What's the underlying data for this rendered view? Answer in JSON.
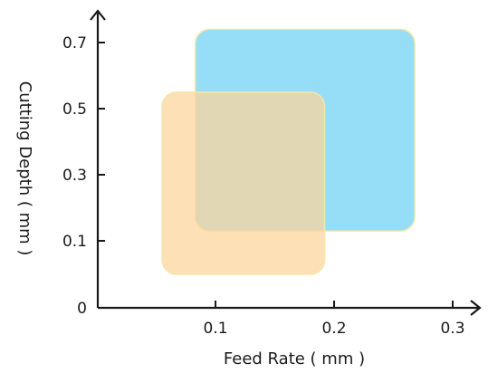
{
  "chart_data": {
    "type": "area",
    "title": "",
    "xlabel": "Feed Rate ( mm )",
    "ylabel": "Cutting Depth ( mm )",
    "xlim": [
      0,
      0.3
    ],
    "ylim": [
      0,
      0.8
    ],
    "x_ticks": [
      {
        "value": 0.1,
        "label": "0.1"
      },
      {
        "value": 0.2,
        "label": "0.2"
      },
      {
        "value": 0.3,
        "label": "0.3"
      }
    ],
    "y_ticks": [
      {
        "value": 0,
        "label": "0"
      },
      {
        "value": 0.1,
        "label": "0.1"
      },
      {
        "value": 0.3,
        "label": "0.3"
      },
      {
        "value": 0.5,
        "label": "0.5"
      },
      {
        "value": 0.7,
        "label": "0.7"
      }
    ],
    "y_tick_positions": {
      "0": 0,
      "0.1": 1,
      "0.3": 2,
      "0.5": 3,
      "0.7": 4
    },
    "series": [
      {
        "x_range": [
          0.083,
          0.268
        ],
        "y_range": [
          0.13,
          0.74
        ],
        "color": "#7fd6f5"
      },
      {
        "x_range": [
          0.055,
          0.192
        ],
        "y_range": [
          0.05,
          0.55
        ],
        "color": "#fdd49a"
      }
    ],
    "grid": false,
    "legend": "none"
  }
}
